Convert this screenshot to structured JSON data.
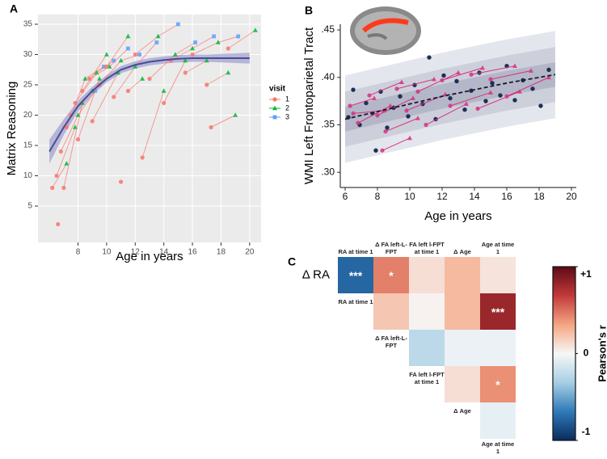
{
  "chart_data": [
    {
      "type": "line",
      "panel_label": "A",
      "xlabel": "Age in years",
      "ylabel": "Matrix Reasoning",
      "xlim": [
        5.2,
        20.8
      ],
      "ylim": [
        -1,
        36.6
      ],
      "xticks": [
        8,
        10,
        12,
        14,
        16,
        18,
        20
      ],
      "yticks": [
        5,
        10,
        15,
        20,
        25,
        30,
        35
      ],
      "grid": true,
      "background": "#ebebeb",
      "line_color": "#f8766d",
      "legend": {
        "title": "visit",
        "labels": [
          "1",
          "2",
          "3"
        ],
        "colors": [
          "#f8766d",
          "#00ba38",
          "#619cff"
        ]
      },
      "trajectories": [
        {
          "x": [
            6.2,
            7.2
          ],
          "y": [
            8,
            12
          ]
        },
        {
          "x": [
            6.5,
            7.8
          ],
          "y": [
            10,
            18
          ]
        },
        {
          "x": [
            6.8,
            8.0,
            9.2
          ],
          "y": [
            14,
            20,
            24
          ]
        },
        {
          "x": [
            7.0,
            8.3
          ],
          "y": [
            8,
            22
          ]
        },
        {
          "x": [
            7.2,
            8.5,
            9.8
          ],
          "y": [
            18,
            26,
            28
          ]
        },
        {
          "x": [
            7.5,
            9.0
          ],
          "y": [
            20,
            24
          ]
        },
        {
          "x": [
            7.8,
            9.3,
            10.5
          ],
          "y": [
            22,
            27,
            29
          ]
        },
        {
          "x": [
            8.0,
            9.5
          ],
          "y": [
            16,
            26
          ]
        },
        {
          "x": [
            8.3,
            10.0
          ],
          "y": [
            24,
            30
          ]
        },
        {
          "x": [
            8.8,
            10.2,
            11.5
          ],
          "y": [
            26,
            28,
            31
          ]
        },
        {
          "x": [
            9.0,
            10.8
          ],
          "y": [
            19,
            27
          ]
        },
        {
          "x": [
            9.5,
            11.0,
            12.3
          ],
          "y": [
            25,
            29,
            30
          ]
        },
        {
          "x": [
            10.0,
            11.5
          ],
          "y": [
            28,
            33
          ]
        },
        {
          "x": [
            10.5,
            12.0,
            13.5
          ],
          "y": [
            23,
            28,
            32
          ]
        },
        {
          "x": [
            11.5,
            12.5
          ],
          "y": [
            24,
            26
          ]
        },
        {
          "x": [
            12.0,
            13.6,
            15.0
          ],
          "y": [
            30,
            33,
            35
          ]
        },
        {
          "x": [
            12.5,
            14.0
          ],
          "y": [
            13,
            24
          ]
        },
        {
          "x": [
            13.0,
            14.8,
            16.2
          ],
          "y": [
            26,
            30,
            32
          ]
        },
        {
          "x": [
            14.0,
            15.5
          ],
          "y": [
            22,
            29
          ]
        },
        {
          "x": [
            14.5,
            16.0,
            17.5
          ],
          "y": [
            29,
            31,
            33
          ]
        },
        {
          "x": [
            15.5,
            17.0
          ],
          "y": [
            27,
            29
          ]
        },
        {
          "x": [
            16.0,
            17.8,
            19.2
          ],
          "y": [
            30,
            32,
            33
          ]
        },
        {
          "x": [
            17.0,
            18.5
          ],
          "y": [
            25,
            27
          ]
        },
        {
          "x": [
            18.5,
            20.4
          ],
          "y": [
            31,
            34
          ]
        },
        {
          "x": [
            6.6
          ],
          "y": [
            2
          ]
        },
        {
          "x": [
            17.3,
            19.0
          ],
          "y": [
            18,
            20
          ]
        },
        {
          "x": [
            11.0
          ],
          "y": [
            9
          ]
        }
      ],
      "fit": {
        "x": [
          6,
          7,
          8,
          9,
          10,
          11,
          12,
          13,
          14,
          15,
          16,
          17,
          18,
          19,
          20
        ],
        "y": [
          14,
          18,
          21.5,
          24,
          26,
          27.5,
          28.3,
          28.8,
          29.1,
          29.3,
          29.4,
          29.4,
          29.4,
          29.4,
          29.4
        ],
        "lower": [
          12,
          16.7,
          20.6,
          23.3,
          25.4,
          26.9,
          27.7,
          28.2,
          28.5,
          28.7,
          28.8,
          28.8,
          28.7,
          28.6,
          28.5
        ],
        "upper": [
          16,
          19.3,
          22.4,
          24.7,
          26.6,
          28.1,
          28.9,
          29.4,
          29.7,
          29.9,
          30,
          30,
          30.1,
          30.2,
          30.3
        ],
        "color": "#4a4a9a",
        "band_color": "#a3a3cf"
      }
    },
    {
      "type": "line",
      "panel_label": "B",
      "xlabel": "Age in years",
      "ylabel": "WMI Left Frontoparietal Tract",
      "xlim": [
        5.7,
        20.3
      ],
      "ylim": [
        0.284,
        0.456
      ],
      "xticks": [
        6,
        8,
        10,
        12,
        14,
        16,
        18,
        20
      ],
      "yticks": [
        {
          "value": 0.3,
          "label": ".30"
        },
        {
          "value": 0.35,
          "label": ".35"
        },
        {
          "value": 0.4,
          "label": ".40"
        },
        {
          "value": 0.45,
          "label": ".45"
        }
      ],
      "bands": {
        "x": [
          6,
          8,
          10,
          12,
          14,
          16,
          18,
          19
        ],
        "levels": [
          {
            "lower": [
              0.31,
              0.318,
              0.326,
              0.334,
              0.341,
              0.348,
              0.354,
              0.357
            ],
            "upper": [
              0.402,
              0.41,
              0.418,
              0.426,
              0.433,
              0.44,
              0.446,
              0.449
            ],
            "color": "#e4e6ed"
          },
          {
            "lower": [
              0.327,
              0.335,
              0.343,
              0.351,
              0.358,
              0.365,
              0.371,
              0.374
            ],
            "upper": [
              0.385,
              0.393,
              0.401,
              0.409,
              0.416,
              0.423,
              0.429,
              0.432
            ],
            "color": "#cdd0db"
          },
          {
            "lower": [
              0.343,
              0.351,
              0.359,
              0.367,
              0.374,
              0.381,
              0.387,
              0.39
            ],
            "upper": [
              0.369,
              0.377,
              0.385,
              0.393,
              0.4,
              0.407,
              0.413,
              0.416
            ],
            "color": "#b3b7c8"
          }
        ]
      },
      "mean": {
        "x": [
          6,
          8,
          10,
          12,
          14,
          16,
          18,
          19
        ],
        "y": [
          0.356,
          0.364,
          0.372,
          0.38,
          0.387,
          0.394,
          0.4,
          0.403
        ],
        "color": "#1a1a2e"
      },
      "line_color": "#d6337f",
      "trajectories": [
        {
          "x": [
            6.3,
            7.8
          ],
          "y": [
            0.37,
            0.378
          ]
        },
        {
          "x": [
            6.8,
            8.8
          ],
          "y": [
            0.352,
            0.37
          ]
        },
        {
          "x": [
            7.5,
            9.5
          ],
          "y": [
            0.381,
            0.395
          ]
        },
        {
          "x": [
            8.0,
            10.2
          ],
          "y": [
            0.36,
            0.378
          ]
        },
        {
          "x": [
            8.5,
            10.5
          ],
          "y": [
            0.343,
            0.357
          ]
        },
        {
          "x": [
            9.2,
            11.5
          ],
          "y": [
            0.388,
            0.398
          ]
        },
        {
          "x": [
            9.8,
            12.2
          ],
          "y": [
            0.365,
            0.382
          ]
        },
        {
          "x": [
            10.5,
            13.0
          ],
          "y": [
            0.385,
            0.405
          ]
        },
        {
          "x": [
            11.0,
            13.5
          ],
          "y": [
            0.35,
            0.372
          ]
        },
        {
          "x": [
            12.0,
            14.5
          ],
          "y": [
            0.397,
            0.41
          ]
        },
        {
          "x": [
            12.5,
            15.0
          ],
          "y": [
            0.37,
            0.384
          ]
        },
        {
          "x": [
            13.8,
            16.5
          ],
          "y": [
            0.403,
            0.412
          ]
        },
        {
          "x": [
            14.2,
            16.8
          ],
          "y": [
            0.367,
            0.385
          ]
        },
        {
          "x": [
            15.0,
            17.5
          ],
          "y": [
            0.398,
            0.407
          ]
        },
        {
          "x": [
            16.0,
            18.6
          ],
          "y": [
            0.38,
            0.4
          ]
        },
        {
          "x": [
            8.3,
            10.0
          ],
          "y": [
            0.323,
            0.336
          ]
        },
        {
          "x": [
            6.5,
            8.4
          ],
          "y": [
            0.362,
            0.365
          ]
        }
      ],
      "points": {
        "color": "#1d2f55",
        "x": [
          6.2,
          6.5,
          6.9,
          7.3,
          7.7,
          7.9,
          8.2,
          8.6,
          9.0,
          9.4,
          9.9,
          10.3,
          10.8,
          11.2,
          11.6,
          12.1,
          12.5,
          12.9,
          13.4,
          13.8,
          14.3,
          14.7,
          15.1,
          15.6,
          16.0,
          16.5,
          17.0,
          17.6,
          18.1,
          18.6
        ],
        "y": [
          0.358,
          0.387,
          0.35,
          0.373,
          0.362,
          0.323,
          0.385,
          0.347,
          0.368,
          0.38,
          0.359,
          0.392,
          0.372,
          0.421,
          0.356,
          0.402,
          0.378,
          0.396,
          0.366,
          0.386,
          0.405,
          0.375,
          0.394,
          0.381,
          0.412,
          0.376,
          0.397,
          0.388,
          0.37,
          0.408
        ]
      }
    },
    {
      "type": "heatmap",
      "panel_label": "C",
      "row_labels": [
        "Δ RA",
        "RA at time 1",
        "Δ FA left-L-FPT",
        "FA left l-FPT at time 1",
        "Δ Age"
      ],
      "col_labels": [
        "RA at time 1",
        "Δ FA left-L-FPT",
        "FA left l-FPT at time 1",
        "Δ Age",
        "Age at time 1"
      ],
      "values": [
        [
          -0.75,
          0.45,
          0.1,
          0.25,
          0.08
        ],
        [
          null,
          0.2,
          0.02,
          0.25,
          0.8
        ],
        [
          null,
          null,
          -0.25,
          -0.05,
          -0.05
        ],
        [
          null,
          null,
          null,
          0.1,
          0.4
        ],
        [
          null,
          null,
          null,
          null,
          -0.07
        ]
      ],
      "stars": [
        [
          "***",
          "*",
          null,
          null,
          null
        ],
        [
          null,
          null,
          null,
          null,
          "***"
        ],
        [
          null,
          null,
          null,
          null,
          null
        ],
        [
          null,
          null,
          null,
          null,
          "*"
        ],
        [
          null,
          null,
          null,
          null,
          null
        ]
      ],
      "colorbar": {
        "title": "Pearson's r",
        "lim": [
          -1,
          1
        ],
        "ticks": [
          {
            "value": 1,
            "label": "+1"
          },
          0,
          {
            "value": -1,
            "label": "-1"
          }
        ],
        "colors": [
          "#0a2b5c",
          "#2f7ab9",
          "#a7cfe4",
          "#f7f7f7",
          "#f4a582",
          "#c23a3a",
          "#5c0a14"
        ]
      }
    }
  ]
}
